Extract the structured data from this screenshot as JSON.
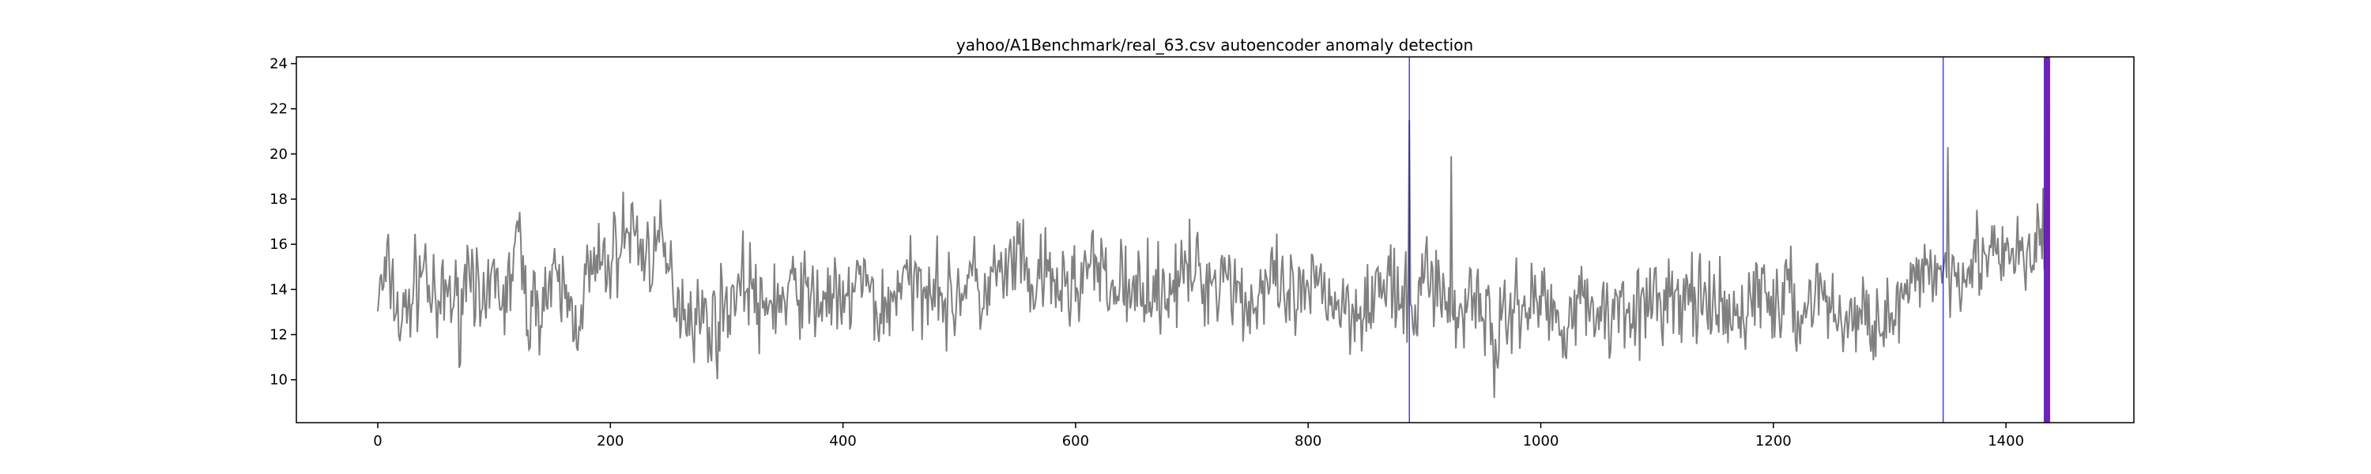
{
  "chart_data": {
    "type": "line",
    "title": "yahoo/A1Benchmark/real_63.csv autoencoder anomaly detection",
    "xlabel": "",
    "ylabel": "",
    "xlim": [
      -70,
      1510
    ],
    "ylim": [
      8.1,
      24.3
    ],
    "x_ticks": [
      0,
      200,
      400,
      600,
      800,
      1000,
      1200,
      1400
    ],
    "y_ticks": [
      10,
      12,
      14,
      16,
      18,
      20,
      22,
      24
    ],
    "grid": false,
    "legend": "none",
    "series": [
      {
        "color": "#808080",
        "step": 10,
        "x_start": 0,
        "x_end": 1437,
        "values": [
          13.6,
          14.8,
          12.3,
          13.9,
          15.2,
          12.6,
          14.1,
          13.0,
          15.8,
          12.1,
          14.7,
          13.3,
          16.4,
          12.8,
          13.6,
          14.1,
          13.9,
          12.5,
          14.5,
          14.9,
          15.2,
          16.3,
          16.7,
          15.4,
          16.1,
          14.8,
          13.5,
          13.0,
          12.7,
          12.4,
          13.3,
          14.2,
          14.5,
          12.5,
          13.8,
          13.2,
          14.3,
          13.6,
          13.4,
          14.0,
          12.6,
          14.6,
          14.1,
          13.0,
          13.2,
          14.7,
          13.9,
          14.2,
          14.8,
          13.0,
          14.0,
          14.6,
          13.5,
          14.6,
          14.4,
          15.6,
          13.8,
          14.5,
          14.3,
          14.0,
          14.2,
          15.0,
          14.7,
          13.8,
          14.6,
          13.3,
          14.7,
          13.8,
          14.3,
          14.2,
          15.0,
          14.4,
          14.4,
          15.0,
          13.9,
          13.2,
          14.0,
          14.2,
          13.4,
          13.5,
          13.4,
          14.6,
          13.6,
          13.3,
          13.2,
          13.6,
          13.9,
          14.3,
          13.1,
          12.8,
          14.7,
          14.6,
          13.0,
          12.6,
          14.3,
          13.2,
          11.9,
          12.4,
          13.8,
          13.1,
          13.9,
          12.8,
          12.6,
          13.5,
          13.2,
          13.2,
          12.7,
          13.8,
          13.3,
          12.9,
          13.5,
          13.8,
          13.0,
          14.0,
          13.0,
          13.0,
          12.8,
          12.5,
          13.7,
          14.1,
          13.1,
          14.0,
          12.7,
          13.4,
          14.3,
          12.8,
          12.8,
          12.6,
          12.7,
          13.1,
          12.3,
          13.5,
          13.6,
          15.2,
          15.0,
          14.6,
          15.1,
          15.3,
          15.6,
          15.3,
          15.1,
          15.6,
          15.2,
          15.9,
          15.7
        ],
        "noise_amplitude": 2.2,
        "spikes": [
          {
            "x": 887,
            "y": 21.5
          },
          {
            "x": 923,
            "y": 19.9
          },
          {
            "x": 960,
            "y": 9.2
          },
          {
            "x": 1350,
            "y": 20.3
          },
          {
            "x": 1432,
            "y": 18.5
          },
          {
            "x": 1436,
            "y": 22.0
          }
        ]
      }
    ],
    "anomalies": {
      "color": "#0000ff",
      "x": [
        887,
        1346,
        1433,
        1434,
        1435,
        1436,
        1437
      ]
    },
    "fill_regions": [
      {
        "x_from": 1433,
        "x_to": 1438,
        "color": "#7a1fa2"
      }
    ]
  }
}
